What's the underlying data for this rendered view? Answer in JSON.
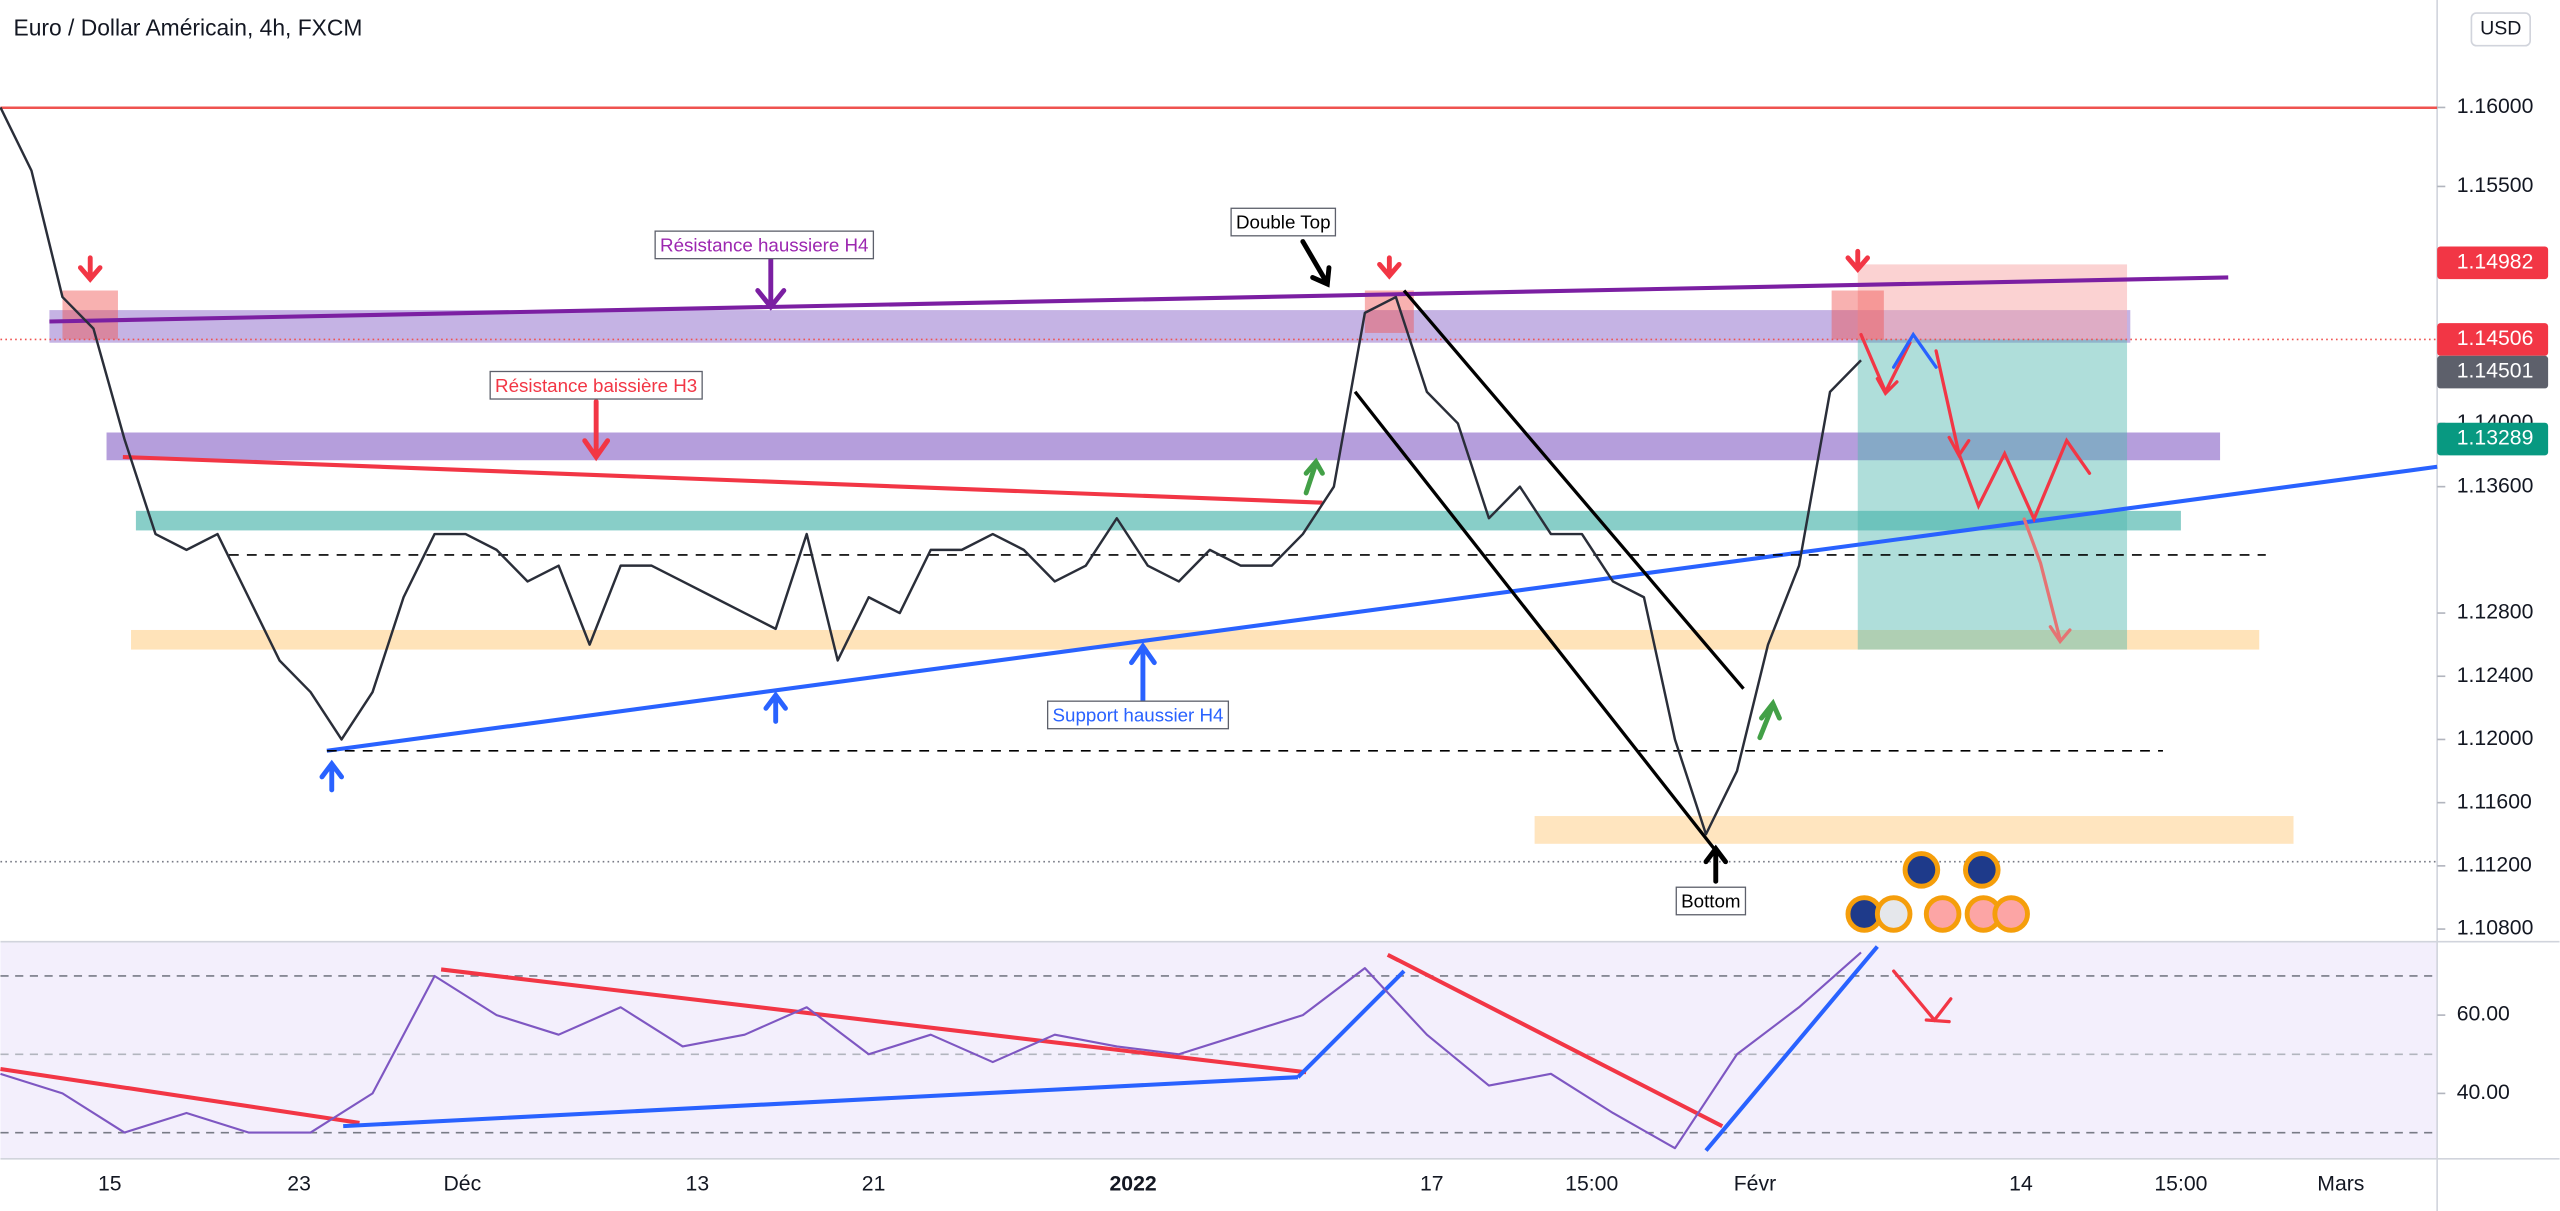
{
  "header": {
    "title": "Euro / Dollar Américain, 4h, FXCM",
    "currency": "USD"
  },
  "chart_data": [
    {
      "type": "line",
      "color": "#2a2e39",
      "values": [
        1.16,
        1.156,
        1.148,
        1.146,
        1.139,
        1.133,
        1.132,
        1.133,
        1.129,
        1.125,
        1.123,
        1.12,
        1.123,
        1.129,
        1.133,
        1.133,
        1.132,
        1.13,
        1.131,
        1.126,
        1.131,
        1.131,
        1.13,
        1.129,
        1.128,
        1.127,
        1.133,
        1.125,
        1.129,
        1.128,
        1.132,
        1.132,
        1.133,
        1.132,
        1.13,
        1.131,
        1.134,
        1.131,
        1.13,
        1.132,
        1.131,
        1.131,
        1.133,
        1.136,
        1.147,
        1.148,
        1.142,
        1.14,
        1.134,
        1.136,
        1.133,
        1.133,
        1.13,
        1.129,
        1.12,
        1.114,
        1.118,
        1.126,
        1.131,
        1.142,
        1.144
      ],
      "ylim": [
        1.1072,
        1.1668
      ],
      "yticks": [
        {
          "value": 1.16,
          "label": "1.16000"
        },
        {
          "value": 1.155,
          "label": "1.15500"
        },
        {
          "value": 1.14,
          "label": "1.14000"
        },
        {
          "value": 1.136,
          "label": "1.13600"
        },
        {
          "value": 1.128,
          "label": "1.12800"
        },
        {
          "value": 1.124,
          "label": "1.12400"
        },
        {
          "value": 1.12,
          "label": "1.12000"
        },
        {
          "value": 1.116,
          "label": "1.11600"
        },
        {
          "value": 1.112,
          "label": "1.11200"
        },
        {
          "value": 1.108,
          "label": "1.10800"
        }
      ]
    },
    {
      "type": "line",
      "color": "#7e57c2",
      "values": [
        45,
        40,
        30,
        35,
        30,
        30,
        40,
        70,
        60,
        55,
        62,
        52,
        55,
        62,
        50,
        55,
        48,
        55,
        52,
        50,
        55,
        60,
        72,
        55,
        42,
        45,
        35,
        26,
        50,
        62,
        76
      ],
      "ylim": [
        23.3,
        78.75
      ],
      "yticks": [
        {
          "value": 60,
          "label": "60.00"
        },
        {
          "value": 40,
          "label": "40.00"
        }
      ]
    }
  ],
  "time_axis": [
    "15",
    "23",
    "Déc",
    "13",
    "21",
    "2022",
    "17",
    "15:00",
    "Févr",
    "14",
    "15:00",
    "Mars"
  ],
  "price_labels": [
    1.14982,
    1.14506,
    1.14501,
    1.13289
  ],
  "annotations": [
    "Résistance haussiere H4",
    "Résistance baissière H3",
    "Double Top",
    "Support haussier H4",
    "Bottom"
  ]
}
